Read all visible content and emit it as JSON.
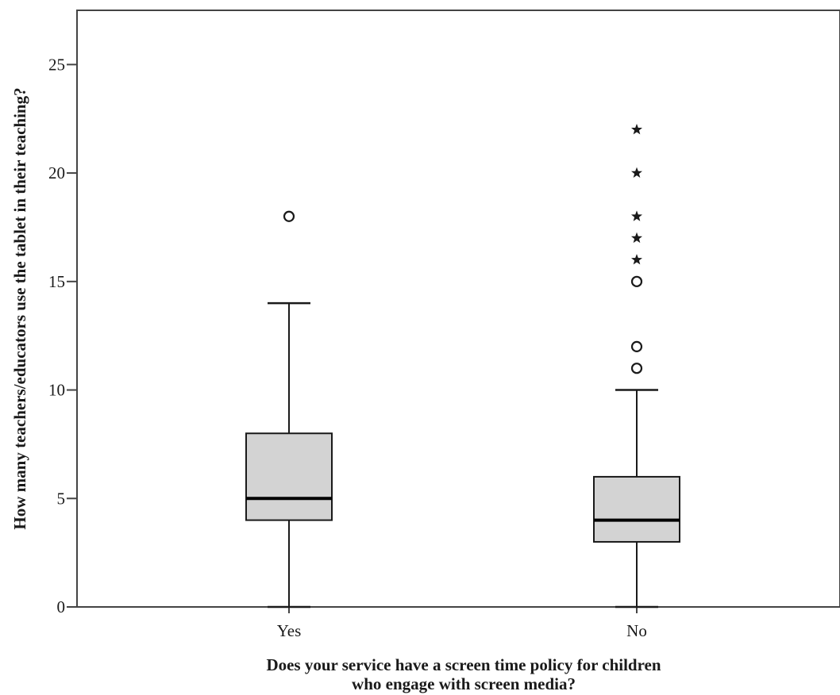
{
  "chart_data": {
    "type": "boxplot",
    "xlabel": [
      "Does your service have a screen time policy for children",
      "who engage with screen media?"
    ],
    "ylabel": "How many teachers/educators use the tablet in their teaching?",
    "ylim": [
      0,
      27.5
    ],
    "yticks": [
      0,
      5,
      10,
      15,
      20,
      25
    ],
    "grid": false,
    "legend": "none",
    "categories": [
      "Yes",
      "No"
    ],
    "boxes": [
      {
        "category": "Yes",
        "whisker_low": 0,
        "q1": 4,
        "median": 5,
        "q3": 8,
        "whisker_high": 14,
        "outliers": [
          18
        ],
        "extremes": []
      },
      {
        "category": "No",
        "whisker_low": 0,
        "q1": 3,
        "median": 4,
        "q3": 6,
        "whisker_high": 10,
        "outliers": [
          11,
          12,
          15
        ],
        "extremes": [
          16,
          17,
          18,
          20,
          22
        ]
      }
    ],
    "colors": {
      "box_fill": "#d3d3d3",
      "line": "#1a1a1a",
      "frame": "#444444",
      "extreme_symbol": "*",
      "outlier_symbol": "o"
    }
  }
}
